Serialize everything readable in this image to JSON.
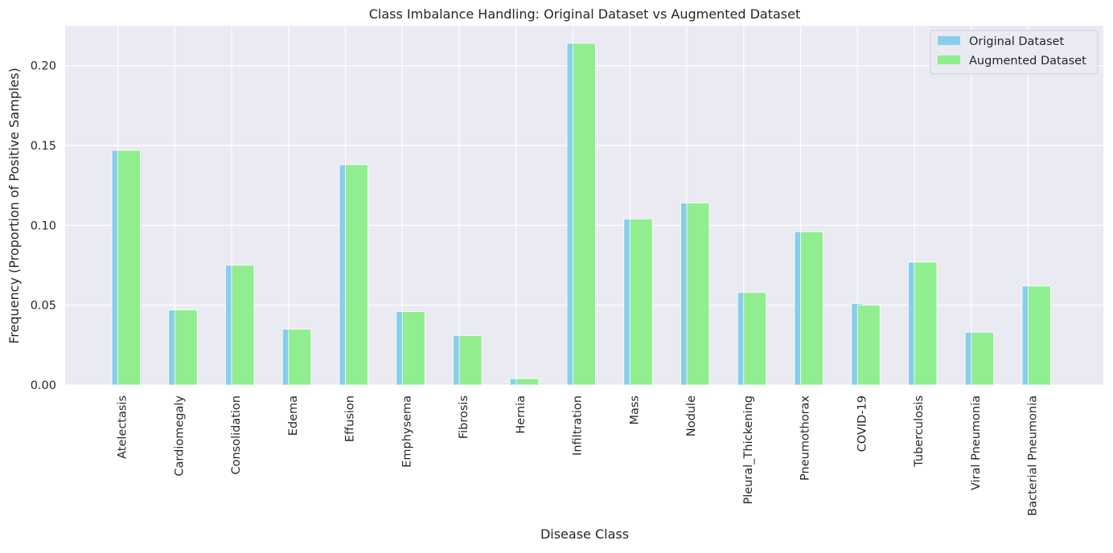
{
  "chart_data": {
    "type": "bar",
    "title": "Class Imbalance Handling: Original Dataset vs Augmented Dataset",
    "xlabel": "Disease Class",
    "ylabel": "Frequency (Proportion of Positive Samples)",
    "ylim": [
      0,
      0.225
    ],
    "yticks": [
      "0.00",
      "0.05",
      "0.10",
      "0.15",
      "0.20"
    ],
    "ytick_values": [
      0,
      0.05,
      0.1,
      0.15,
      0.2
    ],
    "grid": true,
    "legend_position": "top-right",
    "categories": [
      "Atelectasis",
      "Cardiomegaly",
      "Consolidation",
      "Edema",
      "Effusion",
      "Emphysema",
      "Fibrosis",
      "Hernia",
      "Infiltration",
      "Mass",
      "Nodule",
      "Pleural_Thickening",
      "Pneumothorax",
      "COVID-19",
      "Tuberculosis",
      "Viral Pneumonia",
      "Bacterial Pneumonia"
    ],
    "series": [
      {
        "name": "Original Dataset",
        "color": "#87ceeb",
        "values": [
          0.147,
          0.047,
          0.075,
          0.035,
          0.138,
          0.046,
          0.031,
          0.004,
          0.214,
          0.104,
          0.114,
          0.058,
          0.096,
          0.051,
          0.077,
          0.033,
          0.062
        ]
      },
      {
        "name": "Augmented Dataset",
        "color": "#90ee90",
        "values": [
          0.147,
          0.047,
          0.075,
          0.035,
          0.138,
          0.046,
          0.031,
          0.004,
          0.214,
          0.104,
          0.114,
          0.058,
          0.096,
          0.05,
          0.077,
          0.033,
          0.062
        ]
      }
    ]
  }
}
